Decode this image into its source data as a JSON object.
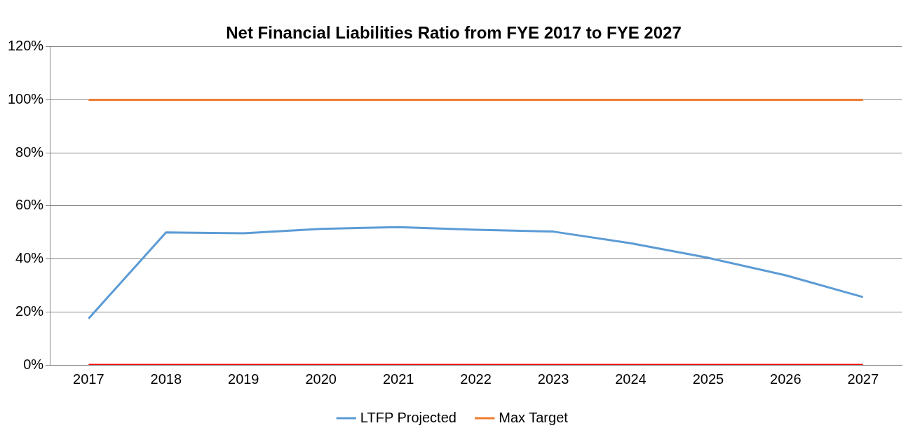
{
  "chart_data": {
    "type": "line",
    "title": "Net Financial Liabilities Ratio from FYE 2017 to FYE 2027",
    "categories": [
      "2017",
      "2018",
      "2019",
      "2020",
      "2021",
      "2022",
      "2023",
      "2024",
      "2025",
      "2026",
      "2027"
    ],
    "series": [
      {
        "name": "LTFP Projected",
        "color": "#5b9bd5",
        "values": [
          17.5,
          50,
          49.7,
          51.3,
          52,
          51,
          50.3,
          45.9,
          40.4,
          33.8,
          25.6
        ]
      },
      {
        "name": "Max Target",
        "color": "#ed7d31",
        "values": [
          100,
          100,
          100,
          100,
          100,
          100,
          100,
          100,
          100,
          100,
          100
        ]
      },
      {
        "color": "#ff0000",
        "values": [
          0,
          0,
          0,
          0,
          0,
          0,
          0,
          0,
          0,
          0,
          0
        ]
      }
    ],
    "ylim": [
      0,
      120
    ],
    "yticks": [
      {
        "value": 0,
        "label": "0%"
      },
      {
        "value": 20,
        "label": "20%"
      },
      {
        "value": 40,
        "label": "40%"
      },
      {
        "value": 60,
        "label": "60%"
      },
      {
        "value": 80,
        "label": "80%"
      },
      {
        "value": 100,
        "label": "100%"
      },
      {
        "value": 120,
        "label": "120%"
      }
    ],
    "grid": "y",
    "legend": "bottom",
    "marker": "none",
    "line_style": "solid"
  }
}
